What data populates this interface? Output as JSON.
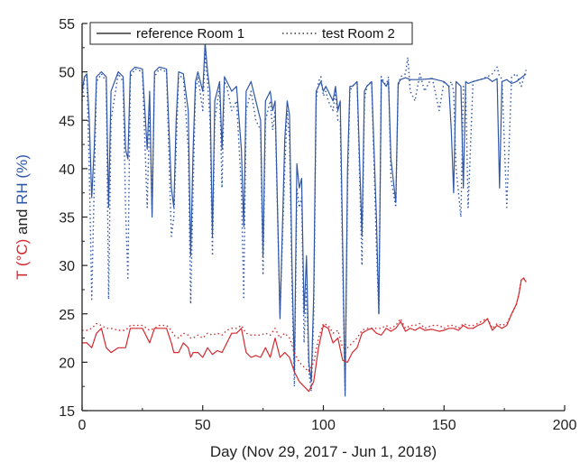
{
  "chart_data": {
    "type": "line",
    "xlabel": "Day (Nov 29, 2017 - Jun 1, 2018)",
    "ylabel_parts": [
      {
        "text": "T (°C)",
        "color": "#d42a2f"
      },
      {
        "text": " and ",
        "color": "#222222"
      },
      {
        "text": "RH",
        "color": "#2f56a7"
      },
      {
        "text": " (%)",
        "color": "#2f56a7"
      }
    ],
    "xlim": [
      0,
      200
    ],
    "ylim": [
      15,
      55
    ],
    "xticks": [
      "0",
      "50",
      "100",
      "150",
      "200"
    ],
    "yticks": [
      "15",
      "20",
      "25",
      "30",
      "35",
      "40",
      "45",
      "50",
      "55"
    ],
    "xtick_values": [
      0,
      50,
      100,
      150,
      200
    ],
    "ytick_values": [
      15,
      20,
      25,
      30,
      35,
      40,
      45,
      50,
      55
    ],
    "grid": false,
    "legend_position": "top-left",
    "legend": [
      {
        "label": "reference Room 1",
        "style": "solid"
      },
      {
        "label": "test Room 2",
        "style": "dotted"
      }
    ],
    "series": [
      {
        "quantity": "RH",
        "room": "reference",
        "style": "solid",
        "color": "#2f56a7",
        "x": [
          0,
          1,
          2,
          3,
          4,
          5,
          6,
          8,
          10,
          11,
          12,
          15,
          17,
          18,
          19,
          20,
          22,
          25,
          27,
          28,
          29,
          30,
          32,
          35,
          37,
          38,
          39,
          40,
          42,
          44,
          45,
          46,
          47,
          48,
          50,
          51,
          52,
          53,
          54,
          55,
          57,
          58,
          59,
          60,
          62,
          64,
          66,
          67,
          68,
          70,
          72,
          74,
          75,
          76,
          78,
          79,
          80,
          82,
          84,
          85,
          86,
          87,
          88,
          89,
          90,
          91,
          92,
          93,
          94,
          95,
          96,
          97,
          98,
          99,
          100,
          101,
          102,
          104,
          105,
          106,
          107,
          108,
          109,
          110,
          111,
          112,
          114,
          116,
          117,
          118,
          120,
          122,
          123,
          124,
          126,
          127,
          128,
          130,
          131,
          132,
          134,
          136,
          140,
          145,
          150,
          152,
          153,
          154,
          155,
          157,
          158,
          159,
          160,
          162,
          165,
          168,
          170,
          172,
          173,
          174,
          176,
          178,
          180,
          182,
          184
        ],
        "y": [
          48,
          49.5,
          49.8,
          45,
          37,
          42,
          49.5,
          50,
          49.5,
          36,
          48,
          50,
          49.5,
          42,
          41,
          50,
          50.5,
          50.3,
          42,
          48,
          35,
          50,
          50.5,
          50.3,
          38,
          36,
          45,
          50,
          49.8,
          46,
          31,
          42,
          49,
          50,
          48,
          53,
          50,
          48,
          33,
          47,
          49,
          42,
          49.5,
          49,
          48,
          48.5,
          42,
          34,
          48,
          49,
          47,
          45,
          31,
          47,
          48,
          46,
          47,
          24.5,
          43,
          47,
          45.5,
          30,
          19,
          40.5,
          38,
          39,
          25,
          31,
          20,
          18,
          27,
          48,
          48.5,
          49,
          48,
          48.5,
          48,
          47,
          48.5,
          46,
          47,
          32,
          16.5,
          40,
          48.5,
          48.5,
          49,
          33,
          48,
          48.5,
          49,
          35,
          25,
          49.2,
          48.5,
          49,
          41,
          36.5,
          48.8,
          49.2,
          49.4,
          49.2,
          49.2,
          49.3,
          49,
          48.5,
          44,
          37.5,
          49,
          48.5,
          38,
          49,
          48.8,
          49,
          49.2,
          49.4,
          49,
          49.3,
          38,
          49,
          49.2,
          48.8,
          49,
          49.4,
          49.8
        ]
      },
      {
        "quantity": "RH",
        "room": "test",
        "style": "dotted",
        "color": "#2f56a7",
        "x": [
          0,
          1,
          2,
          3,
          4,
          5,
          6,
          8,
          10,
          11,
          12,
          15,
          17,
          18,
          19,
          20,
          22,
          25,
          27,
          28,
          29,
          30,
          32,
          35,
          37,
          38,
          39,
          40,
          42,
          44,
          45,
          46,
          47,
          48,
          50,
          51,
          52,
          53,
          54,
          55,
          57,
          58,
          59,
          60,
          62,
          64,
          66,
          67,
          68,
          70,
          72,
          74,
          75,
          76,
          78,
          79,
          80,
          82,
          84,
          85,
          86,
          87,
          88,
          89,
          90,
          91,
          92,
          93,
          94,
          95,
          96,
          97,
          98,
          99,
          100,
          101,
          102,
          104,
          105,
          106,
          107,
          108,
          109,
          110,
          111,
          112,
          114,
          116,
          117,
          118,
          120,
          122,
          123,
          124,
          126,
          127,
          128,
          130,
          131,
          132,
          134,
          135,
          136,
          138,
          140,
          142,
          145,
          148,
          150,
          152,
          153,
          154,
          155,
          157,
          158,
          159,
          160,
          162,
          165,
          168,
          170,
          172,
          173,
          174,
          176,
          178,
          180,
          182,
          184
        ],
        "y": [
          47,
          49.3,
          49.5,
          40,
          26.5,
          38,
          49,
          49.8,
          49,
          26.5,
          45,
          49.8,
          49,
          36,
          28.5,
          49.5,
          50.3,
          50,
          36,
          46,
          35.5,
          49.5,
          50.3,
          50,
          33,
          35,
          42,
          49.5,
          49.5,
          42,
          26,
          38,
          48,
          49.5,
          46,
          52,
          49,
          45,
          31,
          45,
          48.5,
          38,
          49,
          48.5,
          46,
          47,
          38,
          26.5,
          46,
          48,
          45,
          44,
          29,
          45,
          47,
          44,
          46,
          25,
          40,
          46,
          43,
          28,
          17.5,
          38,
          36,
          37,
          22,
          28,
          19,
          17,
          25,
          47,
          49,
          49.5,
          47.5,
          48,
          47,
          46,
          48,
          45,
          45,
          30,
          17,
          38,
          48,
          48.5,
          49,
          30,
          47,
          48.5,
          49,
          32,
          25,
          49.5,
          48.5,
          49.5,
          39,
          36,
          48.5,
          49.5,
          49.8,
          51.5,
          48,
          47,
          49.8,
          48,
          49.5,
          46,
          49,
          48.5,
          49,
          48,
          40,
          35,
          48.5,
          48,
          36,
          49,
          49.2,
          49.5,
          49.8,
          50.5,
          49.5,
          49.3,
          36,
          49.5,
          49.8,
          48.5,
          50.2
        ]
      },
      {
        "quantity": "T",
        "room": "reference",
        "style": "solid",
        "color": "#d42a2f",
        "x": [
          0,
          2,
          4,
          6,
          8,
          10,
          12,
          15,
          18,
          20,
          22,
          25,
          28,
          30,
          32,
          35,
          37,
          38,
          40,
          42,
          44,
          45,
          46,
          48,
          50,
          52,
          54,
          56,
          58,
          60,
          62,
          64,
          66,
          68,
          70,
          72,
          74,
          76,
          78,
          80,
          82,
          84,
          86,
          88,
          90,
          92,
          94,
          96,
          98,
          100,
          102,
          104,
          106,
          108,
          110,
          112,
          114,
          116,
          118,
          120,
          122,
          124,
          126,
          128,
          130,
          132,
          134,
          136,
          138,
          140,
          142,
          145,
          148,
          150,
          152,
          154,
          156,
          158,
          160,
          162,
          164,
          166,
          168,
          170,
          172,
          174,
          176,
          178,
          180,
          181,
          182,
          183,
          184
        ],
        "y": [
          22,
          22,
          21.5,
          23,
          23.5,
          21.5,
          21,
          21.5,
          21.5,
          23.5,
          23.5,
          23.5,
          22,
          23.5,
          23.5,
          23.5,
          22,
          21,
          21,
          22,
          21.5,
          20.5,
          21,
          21,
          20.5,
          21.5,
          20.8,
          21.2,
          21,
          22,
          23,
          23,
          23.5,
          21,
          20.5,
          20.7,
          20.5,
          21.5,
          20.5,
          22.5,
          20.5,
          21,
          20.5,
          19,
          18,
          17.5,
          17,
          18,
          21.5,
          23.8,
          23.5,
          22,
          22.5,
          20.2,
          20,
          21,
          21.5,
          23,
          23.3,
          23.5,
          23,
          22.8,
          23.5,
          23.2,
          23.5,
          24.2,
          23.2,
          23.5,
          23.3,
          23.6,
          23.3,
          23.4,
          23.2,
          23.3,
          23.5,
          23.5,
          23.3,
          23.8,
          23.5,
          23.5,
          23.8,
          24,
          24.5,
          23.3,
          23.8,
          23.5,
          23.8,
          25,
          26,
          27,
          28.5,
          28.7,
          28.3
        ]
      },
      {
        "quantity": "T",
        "room": "test",
        "style": "dotted",
        "color": "#d42a2f",
        "x": [
          0,
          2,
          4,
          6,
          8,
          10,
          12,
          15,
          18,
          20,
          22,
          25,
          28,
          30,
          32,
          35,
          37,
          38,
          40,
          42,
          44,
          45,
          46,
          48,
          50,
          52,
          54,
          56,
          58,
          60,
          62,
          64,
          66,
          68,
          70,
          72,
          74,
          76,
          78,
          80,
          82,
          84,
          86,
          88,
          90,
          92,
          94,
          96,
          98,
          100,
          102,
          104,
          106,
          108,
          110,
          112,
          114,
          116,
          118,
          120,
          122,
          124,
          126,
          128,
          130,
          132,
          134,
          136,
          138,
          140,
          142,
          145,
          148,
          150,
          152,
          154,
          156,
          158,
          160,
          162,
          164,
          166,
          168,
          170,
          172,
          174,
          176,
          178,
          180,
          181,
          182,
          183,
          184
        ],
        "y": [
          23.3,
          23.3,
          23.5,
          24,
          23.8,
          23.5,
          23.5,
          23.3,
          23.3,
          23.8,
          23.8,
          23.8,
          23.3,
          23.5,
          23.8,
          23.8,
          23.3,
          22.8,
          22.5,
          23,
          22.8,
          22.5,
          22.5,
          22.8,
          22.5,
          23,
          22.8,
          23,
          22.8,
          23.3,
          23.5,
          23.5,
          23.8,
          23,
          22.8,
          22.8,
          22.8,
          23,
          22.8,
          23.5,
          22.5,
          23,
          22.5,
          21,
          20,
          19.5,
          19,
          20,
          22.5,
          24,
          23.8,
          23,
          23.3,
          21.5,
          21.5,
          22,
          22.5,
          23.3,
          23.5,
          23.5,
          23.5,
          23.5,
          23.8,
          23.5,
          23.8,
          24.5,
          23.5,
          23.8,
          23.8,
          24,
          23.5,
          23.8,
          23.8,
          23.5,
          23.8,
          23.8,
          23.5,
          24,
          23.8,
          23.8,
          24,
          24.3,
          24.5,
          23.5,
          24,
          23.8,
          24,
          25,
          26,
          27,
          28.5,
          28.7,
          28.3
        ]
      }
    ]
  }
}
